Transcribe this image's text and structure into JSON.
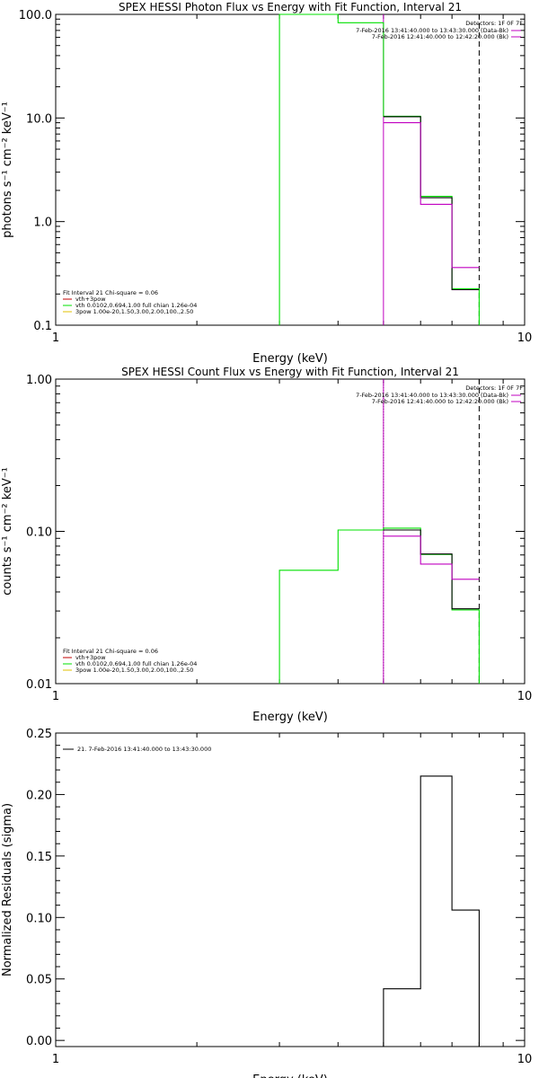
{
  "colors": {
    "data": "#000000",
    "green": "#00e000",
    "magenta": "#c000c0",
    "red": "#c00000",
    "orange": "#e0c000",
    "blue": "#0000c0"
  },
  "chart_data": [
    {
      "type": "line",
      "title": "SPEX HESSI Photon Flux vs Energy with Fit Function, Interval 21",
      "xlabel": "Energy (keV)",
      "ylabel": "photons s⁻¹ cm⁻² keV⁻¹",
      "xscale": "log",
      "yscale": "log",
      "xlim": [
        1,
        10
      ],
      "ylim": [
        0.1,
        100
      ],
      "xticklabels": [
        "1",
        "10"
      ],
      "yticklabels": [
        "0.1",
        "1.0",
        "10.0",
        "100.0"
      ],
      "yticks": [
        0.1,
        1,
        10,
        100
      ],
      "vlines": [
        {
          "x": 5.0,
          "style": "solid",
          "color": "magenta"
        },
        {
          "x": 8.0,
          "style": "dashed",
          "color": "black"
        }
      ],
      "legend_topright": {
        "header": "Detectors: 1F 0F 7F",
        "lines": [
          {
            "text": "7-Feb-2016 13:41:40.000 to 13:43:30.000 (Data-Bk)",
            "color": "magenta"
          },
          {
            "text": "7-Feb-2016 12:41:40.000 to 12:42:20.000 (Bk)",
            "color": "magenta"
          }
        ]
      },
      "legend_bottomleft": {
        "header": "Fit Interval 21    Chi-square = 0.06",
        "lines": [
          {
            "text": "vth+3pow",
            "color": "red"
          },
          {
            "text": "vth 0.0102,0.694,1.00  full chian 1.26e-04",
            "color": "green"
          },
          {
            "text": "3pow 1.00e-20,1.50,3.00,2.00,100.,2.50",
            "color": "orange"
          }
        ]
      },
      "series": [
        {
          "color": "green",
          "x": [
            3.0,
            3.0,
            4.0,
            4.0,
            5.0,
            5.0,
            6.0,
            6.0,
            7.0,
            7.0,
            8.0,
            8.0
          ],
          "y": [
            0.1,
            100,
            100,
            83,
            83,
            10.4,
            10.4,
            1.75,
            1.75,
            0.225,
            0.225,
            0.1
          ]
        },
        {
          "color": "data",
          "x": [
            5.0,
            6.0,
            6.0,
            7.0,
            7.0,
            8.0
          ],
          "y": [
            10.3,
            10.3,
            1.7,
            1.7,
            0.22,
            0.22
          ]
        },
        {
          "color": "magenta",
          "x": [
            5.0,
            6.0,
            6.0,
            7.0,
            7.0,
            8.0
          ],
          "y": [
            9.0,
            9.0,
            1.47,
            1.47,
            0.36,
            0.36
          ]
        }
      ]
    },
    {
      "type": "line",
      "title": "SPEX HESSI Count Flux vs Energy with Fit Function, Interval 21",
      "xlabel": "Energy (keV)",
      "ylabel": "counts s⁻¹ cm⁻² keV⁻¹",
      "xscale": "log",
      "yscale": "log",
      "xlim": [
        1,
        10
      ],
      "ylim": [
        0.01,
        1.0
      ],
      "xticklabels": [
        "1",
        "10"
      ],
      "yticklabels": [
        "0.01",
        "0.10",
        "1.00"
      ],
      "yticks": [
        0.01,
        0.1,
        1
      ],
      "vlines": [
        {
          "x": 5.0,
          "style": "dotted",
          "color": "black"
        },
        {
          "x": 5.0,
          "style": "solid",
          "color": "magenta"
        },
        {
          "x": 8.0,
          "style": "dashed",
          "color": "black"
        }
      ],
      "legend_topright": {
        "header": "Detectors: 1F 0F 7F",
        "lines": [
          {
            "text": "7-Feb-2016 13:41:40.000 to 13:43:30.000 (Data-Bk)",
            "color": "magenta"
          },
          {
            "text": "7-Feb-2016 12:41:40.000 to 12:42:20.000 (Bk)",
            "color": "magenta"
          }
        ]
      },
      "legend_bottomleft": {
        "header": "Fit Interval 21    Chi-square = 0.06",
        "lines": [
          {
            "text": "vth+3pow",
            "color": "red"
          },
          {
            "text": "vth 0.0102,0.694,1.00  full chian 1.26e-04",
            "color": "green"
          },
          {
            "text": "3pow 1.00e-20,1.50,3.00,2.00,100.,2.50",
            "color": "orange"
          }
        ]
      },
      "series": [
        {
          "color": "green",
          "x": [
            3.0,
            3.0,
            4.0,
            4.0,
            5.0,
            5.0,
            6.0,
            6.0,
            7.0,
            7.0,
            8.0,
            8.0
          ],
          "y": [
            0.01,
            0.0555,
            0.0555,
            0.102,
            0.102,
            0.105,
            0.105,
            0.0705,
            0.0705,
            0.0305,
            0.0305,
            0.01
          ]
        },
        {
          "color": "data",
          "x": [
            5.0,
            6.0,
            6.0,
            7.0,
            7.0,
            8.0
          ],
          "y": [
            0.102,
            0.102,
            0.071,
            0.071,
            0.031,
            0.031
          ]
        },
        {
          "color": "magenta",
          "x": [
            5.0,
            6.0,
            6.0,
            7.0,
            7.0,
            8.0
          ],
          "y": [
            0.093,
            0.093,
            0.061,
            0.061,
            0.0485,
            0.0485
          ]
        }
      ]
    },
    {
      "type": "line",
      "title": "",
      "xlabel": "Energy (keV)",
      "ylabel": "Normalized Residuals (sigma)",
      "xscale": "log",
      "yscale": "linear",
      "xlim": [
        1,
        10
      ],
      "ylim": [
        -0.005,
        0.25
      ],
      "xticklabels": [
        "1",
        "10"
      ],
      "yticklabels": [
        "0.00",
        "0.05",
        "0.10",
        "0.15",
        "0.20",
        "0.25"
      ],
      "yticks": [
        0,
        0.05,
        0.1,
        0.15,
        0.2,
        0.25
      ],
      "legend_topleft": {
        "lines": [
          {
            "text": "21.  7-Feb-2016 13:41:40.000 to 13:43:30.000",
            "color": "data"
          }
        ]
      },
      "series": [
        {
          "color": "data",
          "x": [
            5.0,
            5.0,
            6.0,
            6.0,
            7.0,
            7.0,
            8.0,
            8.0
          ],
          "y": [
            -0.005,
            0.042,
            0.042,
            0.215,
            0.215,
            0.106,
            0.106,
            -0.005
          ]
        }
      ]
    }
  ]
}
